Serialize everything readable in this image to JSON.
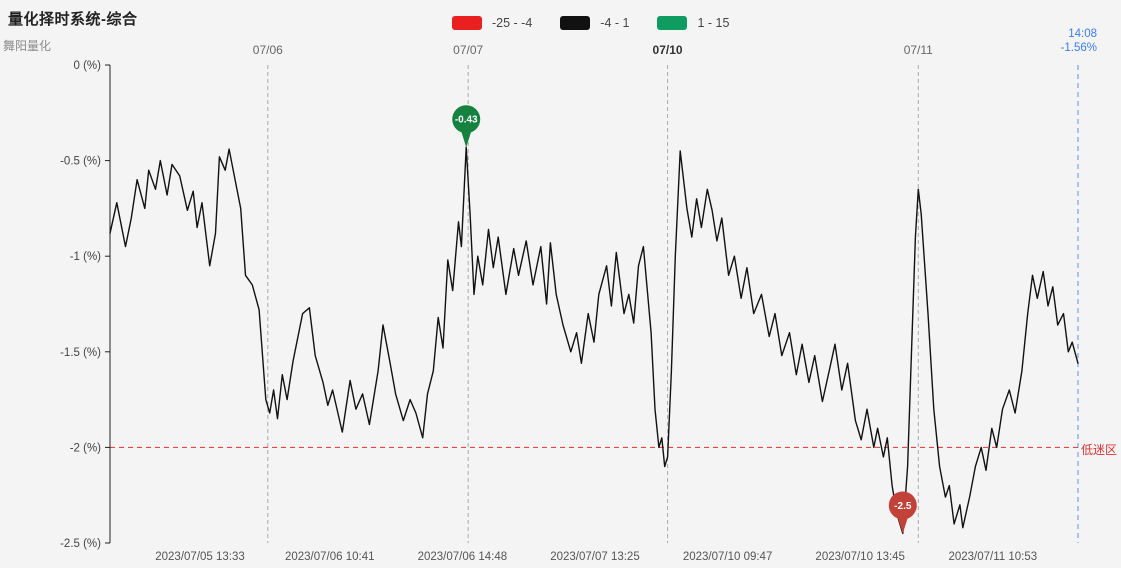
{
  "chart_data": {
    "type": "line",
    "title": "量化择时系统-综合",
    "watermark": "舞阳量化",
    "current_time": "14:08",
    "current_value_pct": "-1.56%",
    "colors": {
      "line": "#111111",
      "grid": "#aaaaaa",
      "accent_blue": "#3b7cf5",
      "current_line": "#5b8ff9",
      "axis": "#222222",
      "background": "#f4f4f4"
    },
    "ylim": [
      -2.5,
      0
    ],
    "y_ticks": [
      {
        "value": 0,
        "label": "0 (%)"
      },
      {
        "value": -0.5,
        "label": "-0.5 (%)"
      },
      {
        "value": -1,
        "label": "-1 (%)"
      },
      {
        "value": -1.5,
        "label": "-1.5 (%)"
      },
      {
        "value": -2,
        "label": "-2 (%)"
      },
      {
        "value": -2.5,
        "label": "-2.5 (%)"
      }
    ],
    "x_top_labels": [
      {
        "label": "07/06",
        "f": 0.163,
        "bold": false
      },
      {
        "label": "07/07",
        "f": 0.37,
        "bold": false
      },
      {
        "label": "07/10",
        "f": 0.576,
        "bold": true
      },
      {
        "label": "07/11",
        "f": 0.835,
        "bold": false
      }
    ],
    "x_bottom_labels": [
      {
        "label": "2023/07/05 13:33",
        "f": 0.093
      },
      {
        "label": "2023/07/06 10:41",
        "f": 0.227
      },
      {
        "label": "2023/07/06 14:48",
        "f": 0.364
      },
      {
        "label": "2023/07/07 13:25",
        "f": 0.501
      },
      {
        "label": "2023/07/10 09:47",
        "f": 0.638
      },
      {
        "label": "2023/07/10 13:45",
        "f": 0.775
      },
      {
        "label": "2023/07/11 10:53",
        "f": 0.912
      }
    ],
    "legend": [
      {
        "label": "-25 - -4",
        "color": "#ea1f1f"
      },
      {
        "label": "-4 - 1",
        "color": "#111111"
      },
      {
        "label": "1 - 15",
        "color": "#0f9c60"
      }
    ],
    "threshold": {
      "value": -2,
      "label": "低迷区",
      "color": "#e03232"
    },
    "markers": [
      {
        "f": 0.368,
        "y": -0.43,
        "label": "-0.43",
        "color": "#15833f"
      },
      {
        "f": 0.819,
        "y": -2.45,
        "label": "-2.5",
        "color": "#c2423a"
      }
    ],
    "series": [
      [
        0.0,
        -0.88
      ],
      [
        0.007,
        -0.72
      ],
      [
        0.016,
        -0.95
      ],
      [
        0.022,
        -0.8
      ],
      [
        0.028,
        -0.6
      ],
      [
        0.036,
        -0.75
      ],
      [
        0.04,
        -0.55
      ],
      [
        0.047,
        -0.65
      ],
      [
        0.052,
        -0.5
      ],
      [
        0.059,
        -0.68
      ],
      [
        0.064,
        -0.52
      ],
      [
        0.072,
        -0.58
      ],
      [
        0.08,
        -0.76
      ],
      [
        0.086,
        -0.66
      ],
      [
        0.09,
        -0.85
      ],
      [
        0.095,
        -0.72
      ],
      [
        0.103,
        -1.05
      ],
      [
        0.109,
        -0.88
      ],
      [
        0.113,
        -0.48
      ],
      [
        0.119,
        -0.55
      ],
      [
        0.123,
        -0.44
      ],
      [
        0.13,
        -0.62
      ],
      [
        0.135,
        -0.75
      ],
      [
        0.14,
        -1.1
      ],
      [
        0.147,
        -1.15
      ],
      [
        0.154,
        -1.28
      ],
      [
        0.161,
        -1.75
      ],
      [
        0.165,
        -1.82
      ],
      [
        0.169,
        -1.7
      ],
      [
        0.173,
        -1.85
      ],
      [
        0.178,
        -1.62
      ],
      [
        0.183,
        -1.75
      ],
      [
        0.189,
        -1.55
      ],
      [
        0.199,
        -1.3
      ],
      [
        0.206,
        -1.27
      ],
      [
        0.212,
        -1.52
      ],
      [
        0.22,
        -1.66
      ],
      [
        0.225,
        -1.78
      ],
      [
        0.23,
        -1.7
      ],
      [
        0.24,
        -1.92
      ],
      [
        0.248,
        -1.65
      ],
      [
        0.254,
        -1.8
      ],
      [
        0.261,
        -1.72
      ],
      [
        0.268,
        -1.88
      ],
      [
        0.277,
        -1.6
      ],
      [
        0.282,
        -1.36
      ],
      [
        0.289,
        -1.55
      ],
      [
        0.295,
        -1.72
      ],
      [
        0.303,
        -1.86
      ],
      [
        0.31,
        -1.75
      ],
      [
        0.316,
        -1.82
      ],
      [
        0.323,
        -1.95
      ],
      [
        0.328,
        -1.72
      ],
      [
        0.334,
        -1.6
      ],
      [
        0.339,
        -1.32
      ],
      [
        0.344,
        -1.48
      ],
      [
        0.349,
        -1.02
      ],
      [
        0.354,
        -1.18
      ],
      [
        0.36,
        -0.82
      ],
      [
        0.363,
        -0.95
      ],
      [
        0.368,
        -0.43
      ],
      [
        0.372,
        -0.78
      ],
      [
        0.376,
        -1.2
      ],
      [
        0.38,
        -1.0
      ],
      [
        0.385,
        -1.15
      ],
      [
        0.391,
        -0.86
      ],
      [
        0.396,
        -1.06
      ],
      [
        0.401,
        -0.9
      ],
      [
        0.409,
        -1.2
      ],
      [
        0.417,
        -0.96
      ],
      [
        0.422,
        -1.1
      ],
      [
        0.43,
        -0.92
      ],
      [
        0.437,
        -1.15
      ],
      [
        0.445,
        -0.95
      ],
      [
        0.451,
        -1.25
      ],
      [
        0.455,
        -0.93
      ],
      [
        0.461,
        -1.2
      ],
      [
        0.468,
        -1.36
      ],
      [
        0.476,
        -1.5
      ],
      [
        0.482,
        -1.4
      ],
      [
        0.487,
        -1.56
      ],
      [
        0.494,
        -1.3
      ],
      [
        0.5,
        -1.45
      ],
      [
        0.505,
        -1.2
      ],
      [
        0.513,
        -1.05
      ],
      [
        0.518,
        -1.26
      ],
      [
        0.523,
        -0.98
      ],
      [
        0.531,
        -1.3
      ],
      [
        0.536,
        -1.2
      ],
      [
        0.541,
        -1.35
      ],
      [
        0.546,
        -1.05
      ],
      [
        0.551,
        -0.95
      ],
      [
        0.559,
        -1.4
      ],
      [
        0.563,
        -1.8
      ],
      [
        0.567,
        -2.0
      ],
      [
        0.57,
        -1.95
      ],
      [
        0.573,
        -2.1
      ],
      [
        0.576,
        -2.05
      ],
      [
        0.58,
        -1.6
      ],
      [
        0.584,
        -1.0
      ],
      [
        0.589,
        -0.45
      ],
      [
        0.593,
        -0.62
      ],
      [
        0.596,
        -0.75
      ],
      [
        0.601,
        -0.9
      ],
      [
        0.606,
        -0.7
      ],
      [
        0.611,
        -0.85
      ],
      [
        0.617,
        -0.65
      ],
      [
        0.622,
        -0.76
      ],
      [
        0.627,
        -0.92
      ],
      [
        0.632,
        -0.8
      ],
      [
        0.639,
        -1.1
      ],
      [
        0.645,
        -1.0
      ],
      [
        0.652,
        -1.22
      ],
      [
        0.658,
        -1.06
      ],
      [
        0.665,
        -1.3
      ],
      [
        0.673,
        -1.2
      ],
      [
        0.681,
        -1.42
      ],
      [
        0.687,
        -1.3
      ],
      [
        0.694,
        -1.52
      ],
      [
        0.702,
        -1.4
      ],
      [
        0.709,
        -1.62
      ],
      [
        0.715,
        -1.46
      ],
      [
        0.722,
        -1.66
      ],
      [
        0.728,
        -1.52
      ],
      [
        0.736,
        -1.76
      ],
      [
        0.743,
        -1.6
      ],
      [
        0.749,
        -1.46
      ],
      [
        0.756,
        -1.7
      ],
      [
        0.762,
        -1.56
      ],
      [
        0.77,
        -1.86
      ],
      [
        0.776,
        -1.96
      ],
      [
        0.782,
        -1.8
      ],
      [
        0.789,
        -2.0
      ],
      [
        0.793,
        -1.9
      ],
      [
        0.799,
        -2.05
      ],
      [
        0.803,
        -1.95
      ],
      [
        0.808,
        -2.2
      ],
      [
        0.813,
        -2.35
      ],
      [
        0.819,
        -2.45
      ],
      [
        0.824,
        -2.1
      ],
      [
        0.828,
        -1.5
      ],
      [
        0.832,
        -0.9
      ],
      [
        0.835,
        -0.65
      ],
      [
        0.838,
        -0.78
      ],
      [
        0.845,
        -1.3
      ],
      [
        0.851,
        -1.8
      ],
      [
        0.857,
        -2.1
      ],
      [
        0.863,
        -2.26
      ],
      [
        0.867,
        -2.2
      ],
      [
        0.872,
        -2.4
      ],
      [
        0.878,
        -2.3
      ],
      [
        0.881,
        -2.42
      ],
      [
        0.888,
        -2.26
      ],
      [
        0.894,
        -2.1
      ],
      [
        0.9,
        -2.0
      ],
      [
        0.905,
        -2.12
      ],
      [
        0.911,
        -1.9
      ],
      [
        0.916,
        -2.0
      ],
      [
        0.922,
        -1.8
      ],
      [
        0.929,
        -1.7
      ],
      [
        0.935,
        -1.82
      ],
      [
        0.942,
        -1.6
      ],
      [
        0.948,
        -1.3
      ],
      [
        0.953,
        -1.1
      ],
      [
        0.958,
        -1.22
      ],
      [
        0.964,
        -1.08
      ],
      [
        0.969,
        -1.26
      ],
      [
        0.974,
        -1.16
      ],
      [
        0.979,
        -1.36
      ],
      [
        0.985,
        -1.3
      ],
      [
        0.99,
        -1.5
      ],
      [
        0.994,
        -1.45
      ],
      [
        1.0,
        -1.56
      ]
    ]
  }
}
